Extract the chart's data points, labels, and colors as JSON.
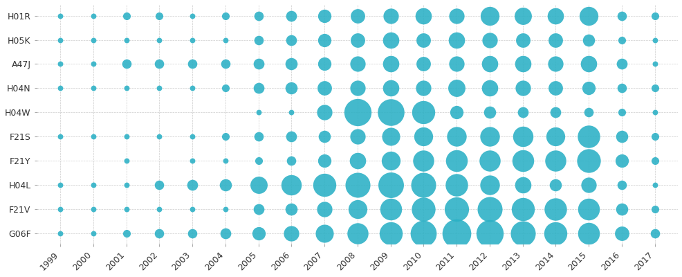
{
  "categories": [
    "H01R",
    "H05K",
    "A47J",
    "H04N",
    "H04W",
    "F21S",
    "F21Y",
    "H04L",
    "F21V",
    "G06F"
  ],
  "years": [
    1999,
    2000,
    2001,
    2002,
    2003,
    2004,
    2005,
    2006,
    2007,
    2008,
    2009,
    2010,
    2011,
    2012,
    2013,
    2014,
    2015,
    2016,
    2017
  ],
  "bubble_color": "#2ab0c5",
  "background_color": "#ffffff",
  "grid_color": "#cccccc",
  "bubble_data": {
    "H01R": [
      1,
      1,
      2,
      2,
      1,
      2,
      3,
      4,
      6,
      7,
      8,
      9,
      8,
      12,
      10,
      9,
      12,
      3,
      2
    ],
    "H05K": [
      1,
      1,
      1,
      1,
      1,
      1,
      3,
      4,
      6,
      7,
      9,
      7,
      9,
      8,
      7,
      7,
      5,
      2,
      1
    ],
    "A47J": [
      1,
      1,
      3,
      3,
      3,
      3,
      4,
      5,
      6,
      8,
      9,
      7,
      8,
      9,
      9,
      8,
      9,
      4,
      1
    ],
    "H04N": [
      1,
      1,
      1,
      1,
      1,
      2,
      4,
      5,
      7,
      8,
      9,
      8,
      10,
      9,
      8,
      7,
      6,
      3,
      2
    ],
    "H04W": [
      0,
      0,
      0,
      0,
      0,
      0,
      1,
      1,
      8,
      25,
      24,
      18,
      6,
      5,
      4,
      4,
      3,
      2,
      1
    ],
    "F21S": [
      1,
      1,
      1,
      1,
      1,
      2,
      3,
      4,
      5,
      8,
      11,
      12,
      13,
      13,
      14,
      12,
      17,
      5,
      2
    ],
    "F21Y": [
      0,
      0,
      1,
      0,
      1,
      1,
      2,
      3,
      6,
      9,
      12,
      15,
      16,
      15,
      16,
      15,
      19,
      6,
      2
    ],
    "H04L": [
      1,
      1,
      1,
      3,
      4,
      5,
      10,
      14,
      18,
      21,
      22,
      21,
      17,
      13,
      9,
      5,
      8,
      3,
      1
    ],
    "F21V": [
      1,
      1,
      1,
      1,
      1,
      1,
      4,
      5,
      8,
      12,
      16,
      19,
      20,
      21,
      18,
      17,
      16,
      5,
      2
    ],
    "G06F": [
      1,
      1,
      2,
      3,
      3,
      4,
      6,
      8,
      11,
      15,
      18,
      23,
      28,
      25,
      21,
      18,
      16,
      7,
      3
    ]
  },
  "scale": 18.0,
  "max_ref": 28
}
